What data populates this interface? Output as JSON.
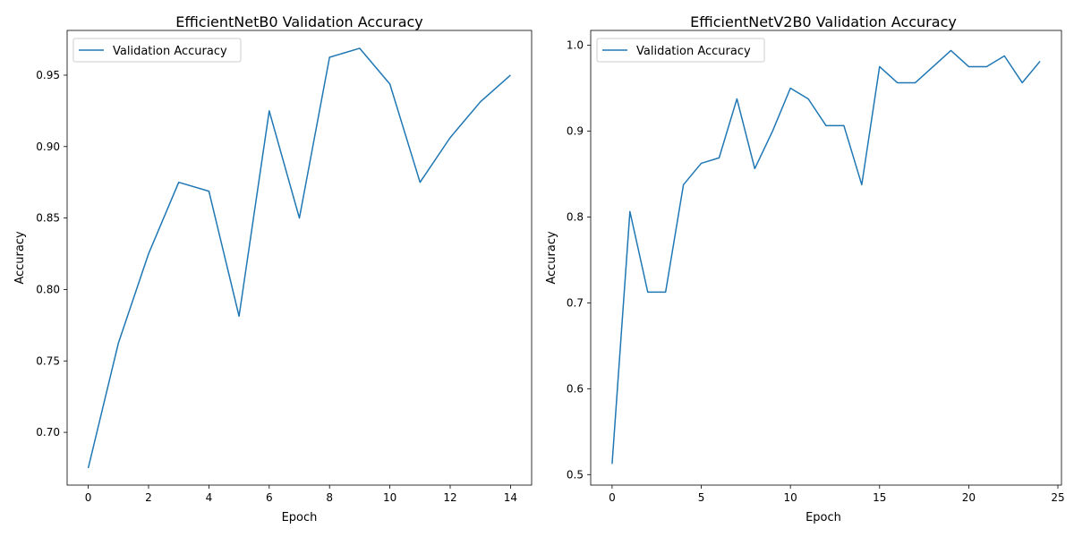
{
  "chart_data": [
    {
      "type": "line",
      "title": "EfficientNetB0 Validation Accuracy",
      "xlabel": "Epoch",
      "ylabel": "Accuracy",
      "xlim": [
        -0.7,
        14.7
      ],
      "ylim": [
        0.6631,
        0.9813
      ],
      "xticks": [
        0,
        2,
        4,
        6,
        8,
        10,
        12,
        14
      ],
      "yticks": [
        0.7,
        0.75,
        0.8,
        0.85,
        0.9,
        0.95
      ],
      "ytick_labels": [
        "0.70",
        "0.75",
        "0.80",
        "0.85",
        "0.90",
        "0.95"
      ],
      "legend": "top-left",
      "grid": false,
      "series": [
        {
          "name": "Validation Accuracy",
          "color": "#1f77b4",
          "x": [
            0,
            1,
            2,
            3,
            4,
            5,
            6,
            7,
            8,
            9,
            10,
            11,
            12,
            13,
            14
          ],
          "y": [
            0.675,
            0.7625,
            0.825,
            0.875,
            0.8688,
            0.7813,
            0.925,
            0.85,
            0.9625,
            0.9688,
            0.9438,
            0.875,
            0.9063,
            0.9313,
            0.95
          ]
        }
      ]
    },
    {
      "type": "line",
      "title": "EfficientNetV2B0 Validation Accuracy",
      "xlabel": "Epoch",
      "ylabel": "Accuracy",
      "xlim": [
        -1.2,
        25.2
      ],
      "ylim": [
        0.4878,
        1.0172
      ],
      "xticks": [
        0,
        5,
        10,
        15,
        20,
        25
      ],
      "yticks": [
        0.5,
        0.6,
        0.7,
        0.8,
        0.9,
        1.0
      ],
      "ytick_labels": [
        "0.5",
        "0.6",
        "0.7",
        "0.8",
        "0.9",
        "1.0"
      ],
      "legend": "top-left",
      "grid": false,
      "series": [
        {
          "name": "Validation Accuracy",
          "color": "#1f77b4",
          "x": [
            0,
            1,
            2,
            3,
            4,
            5,
            6,
            7,
            8,
            9,
            10,
            11,
            12,
            13,
            14,
            15,
            16,
            17,
            18,
            19,
            20,
            21,
            22,
            23,
            24
          ],
          "y": [
            0.5125,
            0.8063,
            0.7125,
            0.7125,
            0.8375,
            0.8625,
            0.8688,
            0.9375,
            0.8563,
            0.9,
            0.95,
            0.9375,
            0.9063,
            0.9063,
            0.8375,
            0.975,
            0.9563,
            0.9563,
            0.975,
            0.9938,
            0.975,
            0.975,
            0.9875,
            0.9563,
            0.9813
          ]
        }
      ]
    }
  ]
}
